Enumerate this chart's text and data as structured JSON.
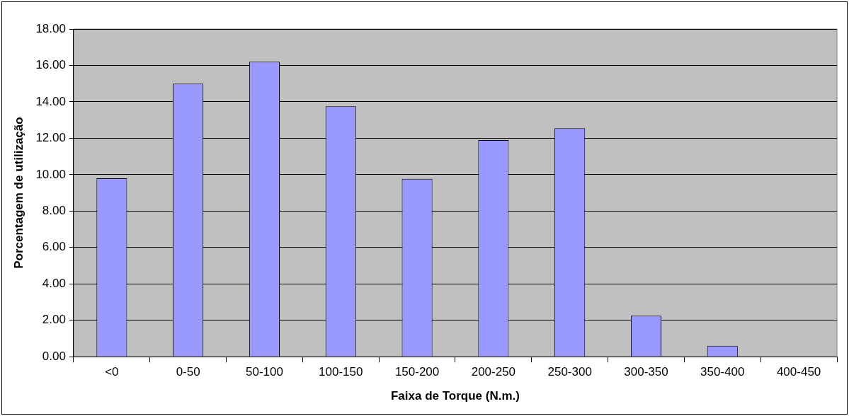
{
  "chart_data": {
    "type": "bar",
    "xlabel": "Faixa de Torque (N.m.)",
    "ylabel": "Porcentagem de utilização",
    "categories": [
      "<0",
      "0-50",
      "50-100",
      "100-150",
      "150-200",
      "200-250",
      "250-300",
      "300-350",
      "350-400",
      "400-450"
    ],
    "values": [
      9.8,
      15.0,
      16.2,
      13.75,
      9.77,
      11.9,
      12.55,
      2.25,
      0.6,
      0
    ],
    "color": "#9999ff",
    "ylim": [
      0,
      18
    ],
    "yticks": [
      {
        "value": 0,
        "label": "0.00"
      },
      {
        "value": 2,
        "label": "2.00"
      },
      {
        "value": 4,
        "label": "4.00"
      },
      {
        "value": 6,
        "label": "6.00"
      },
      {
        "value": 8,
        "label": "8.00"
      },
      {
        "value": 10,
        "label": "10.00"
      },
      {
        "value": 12,
        "label": "12.00"
      },
      {
        "value": 14,
        "label": "14.00"
      },
      {
        "value": 16,
        "label": "16.00"
      },
      {
        "value": 18,
        "label": "18.00"
      }
    ],
    "grid": "y",
    "legend": false
  }
}
